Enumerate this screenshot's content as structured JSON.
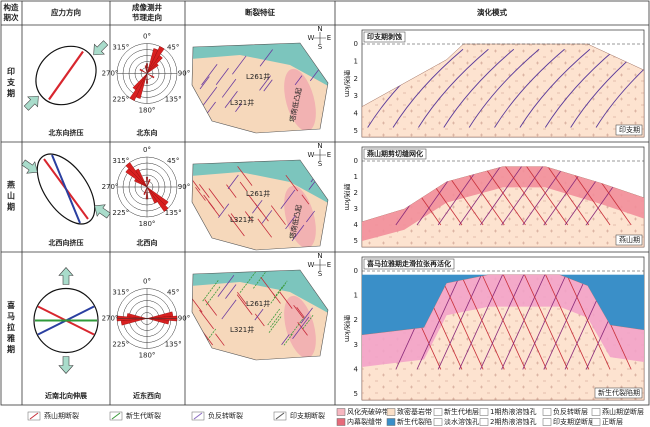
{
  "header": {
    "period": [
      "构造",
      "期次"
    ],
    "stress": "应力方向",
    "joint": [
      "成像测井",
      "节理走向"
    ],
    "fault": "断裂特征",
    "model": "演化模式"
  },
  "rose_angles": [
    "0°",
    "45°",
    "90°",
    "135°",
    "180°",
    "225°",
    "270°",
    "315°"
  ],
  "map_compass": [
    "N",
    "E",
    "S",
    "W"
  ],
  "model_axis": {
    "label": "埋深/km",
    "ticks": [
      "0",
      "1",
      "2",
      "3",
      "4",
      "5"
    ]
  },
  "rows": [
    {
      "period": "印支期",
      "stress_caption": "北东向挤压",
      "rose_caption": "北东向",
      "map": {
        "wells": [
          "L261井",
          "L321井"
        ],
        "uplift": "塔南低凸起"
      },
      "model": {
        "title": "印支期剥蚀",
        "stage": "印支期"
      }
    },
    {
      "period": "燕山期",
      "stress_caption": "北西向挤压",
      "rose_caption": "北西向",
      "map": {
        "wells": [
          "L261井",
          "L321井"
        ],
        "uplift": "塔南低凸起"
      },
      "model": {
        "title": "燕山期剪切缝网化",
        "stage": "燕山期"
      }
    },
    {
      "period": "喜马拉雅期",
      "stress_caption": "近南北向伸展",
      "rose_caption": "近东西向",
      "map": {
        "wells": [
          "L261井",
          "L321井"
        ]
      },
      "model": {
        "title": "喜马拉雅期走滑拉张再活化",
        "stage": "新生代裂陷期"
      }
    }
  ],
  "legend": {
    "faults": [
      "燕山期断裂",
      "新生代断裂",
      "负反转断裂",
      "印支期断裂"
    ],
    "items": [
      "风化壳破碎带",
      "致密基岩带",
      "新生代地层",
      "1期热液溶蚀孔",
      "负反转断层",
      "燕山期逆断层",
      "内幕裂缝带",
      "新生代裂陷",
      "淡水溶蚀孔",
      "2期热液溶蚀孔",
      "印支期逆断层",
      "正断层"
    ]
  }
}
